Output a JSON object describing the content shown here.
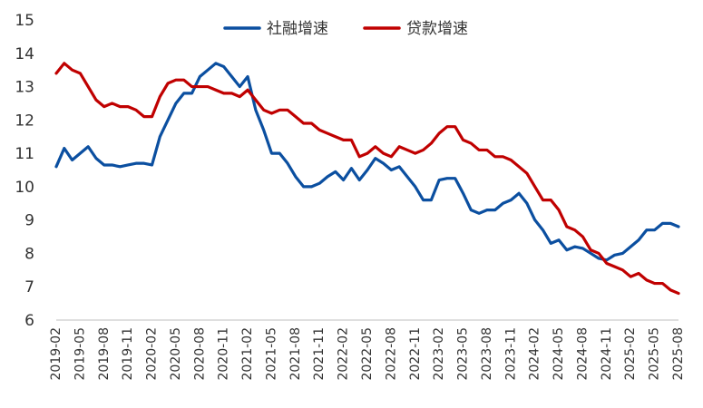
{
  "chart_data": {
    "type": "line",
    "title": "",
    "xlabel": "",
    "ylabel": "",
    "ylim": [
      6,
      15
    ],
    "yticks": [
      6,
      7,
      8,
      9,
      10,
      11,
      12,
      13,
      14,
      15
    ],
    "grid": false,
    "legend_position": "top-center",
    "x": [
      "2019-02",
      "2019-03",
      "2019-04",
      "2019-05",
      "2019-06",
      "2019-07",
      "2019-08",
      "2019-09",
      "2019-10",
      "2019-11",
      "2019-12",
      "2020-01",
      "2020-02",
      "2020-03",
      "2020-04",
      "2020-05",
      "2020-06",
      "2020-07",
      "2020-08",
      "2020-09",
      "2020-10",
      "2020-11",
      "2020-12",
      "2021-01",
      "2021-02",
      "2021-03",
      "2021-04",
      "2021-05",
      "2021-06",
      "2021-07",
      "2021-08",
      "2021-09",
      "2021-10",
      "2021-11",
      "2021-12",
      "2022-01",
      "2022-02",
      "2022-03",
      "2022-04",
      "2022-05",
      "2022-06",
      "2022-07",
      "2022-08",
      "2022-09",
      "2022-10",
      "2022-11",
      "2022-12",
      "2023-01",
      "2023-02",
      "2023-03",
      "2023-04",
      "2023-05",
      "2023-06",
      "2023-07",
      "2023-08",
      "2023-09",
      "2023-10",
      "2023-11",
      "2023-12",
      "2024-01",
      "2024-02",
      "2024-03",
      "2024-04",
      "2024-05",
      "2024-06",
      "2024-07",
      "2024-08",
      "2024-09",
      "2024-10",
      "2024-11",
      "2024-12",
      "2025-01",
      "2025-02",
      "2025-03",
      "2025-04",
      "2025-05",
      "2025-06",
      "2025-07",
      "2025-08"
    ],
    "x_tick_labels": [
      "2019-02",
      "2019-05",
      "2019-08",
      "2019-11",
      "2020-02",
      "2020-05",
      "2020-08",
      "2020-11",
      "2021-02",
      "2021-05",
      "2021-08",
      "2021-11",
      "2022-02",
      "2022-05",
      "2022-08",
      "2022-11",
      "2023-02",
      "2023-05",
      "2023-08",
      "2023-11",
      "2024-02",
      "2024-05",
      "2024-08",
      "2024-11",
      "2025-02",
      "2025-05",
      "2025-08"
    ],
    "series": [
      {
        "name": "社融增速",
        "color": "#0b4fa0",
        "values": [
          10.6,
          11.15,
          10.8,
          11.0,
          11.2,
          10.85,
          10.65,
          10.65,
          10.6,
          10.65,
          10.7,
          10.7,
          10.65,
          11.5,
          12.0,
          12.5,
          12.8,
          12.8,
          13.3,
          13.5,
          13.7,
          13.6,
          13.3,
          13.0,
          13.3,
          12.3,
          11.7,
          11.0,
          11.0,
          10.7,
          10.3,
          10.0,
          10.0,
          10.1,
          10.3,
          10.45,
          10.2,
          10.55,
          10.2,
          10.5,
          10.85,
          10.7,
          10.5,
          10.6,
          10.3,
          10.0,
          9.6,
          9.6,
          10.2,
          10.25,
          10.25,
          9.8,
          9.3,
          9.2,
          9.3,
          9.3,
          9.5,
          9.6,
          9.8,
          9.5,
          9.0,
          8.7,
          8.3,
          8.4,
          8.1,
          8.2,
          8.15,
          8.0,
          7.85,
          7.8,
          7.95,
          8.0,
          8.2,
          8.4,
          8.7,
          8.7,
          8.9,
          8.9,
          8.8
        ]
      },
      {
        "name": "贷款增速",
        "color": "#c00000",
        "values": [
          13.4,
          13.7,
          13.5,
          13.4,
          13.0,
          12.6,
          12.4,
          12.5,
          12.4,
          12.4,
          12.3,
          12.1,
          12.1,
          12.7,
          13.1,
          13.2,
          13.2,
          13.0,
          13.0,
          13.0,
          12.9,
          12.8,
          12.8,
          12.7,
          12.9,
          12.6,
          12.3,
          12.2,
          12.3,
          12.3,
          12.1,
          11.9,
          11.9,
          11.7,
          11.6,
          11.5,
          11.4,
          11.4,
          10.9,
          11.0,
          11.2,
          11.0,
          10.9,
          11.2,
          11.1,
          11.0,
          11.1,
          11.3,
          11.6,
          11.8,
          11.8,
          11.4,
          11.3,
          11.1,
          11.1,
          10.9,
          10.9,
          10.8,
          10.6,
          10.4,
          10.0,
          9.6,
          9.6,
          9.3,
          8.8,
          8.7,
          8.5,
          8.1,
          8.0,
          7.7,
          7.6,
          7.5,
          7.3,
          7.4,
          7.2,
          7.1,
          7.1,
          6.9,
          6.8
        ]
      }
    ]
  }
}
